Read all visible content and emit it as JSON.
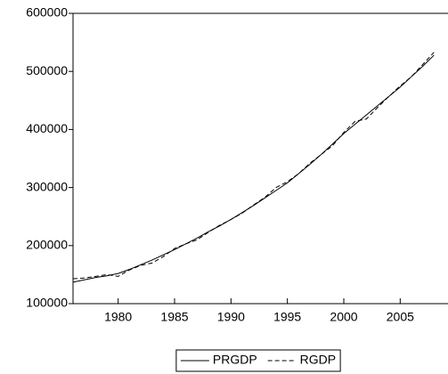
{
  "chart_data": {
    "type": "line",
    "x": [
      1976,
      1977,
      1978,
      1979,
      1980,
      1981,
      1982,
      1983,
      1984,
      1985,
      1986,
      1987,
      1988,
      1989,
      1990,
      1991,
      1992,
      1993,
      1994,
      1995,
      1996,
      1997,
      1998,
      1999,
      2000,
      2001,
      2002,
      2003,
      2004,
      2005,
      2006,
      2007,
      2008
    ],
    "series": [
      {
        "name": "PRGDP",
        "color": "#000000",
        "dash": "solid",
        "values": [
          137000,
          141000,
          145000,
          148000,
          152000,
          159000,
          167000,
          175000,
          184000,
          193000,
          203000,
          213000,
          224000,
          234000,
          245000,
          257000,
          269000,
          282000,
          295000,
          308000,
          324000,
          340000,
          357000,
          375000,
          393000,
          409000,
          425000,
          441000,
          457000,
          473000,
          491000,
          509000,
          528000
        ]
      },
      {
        "name": "RGDP",
        "color": "#000000",
        "dash": "dashed",
        "values": [
          143000,
          144000,
          147000,
          150000,
          147000,
          158000,
          166000,
          170000,
          181000,
          195000,
          203000,
          210000,
          223000,
          235000,
          245000,
          256000,
          270000,
          283000,
          300000,
          310000,
          324000,
          342000,
          357000,
          372000,
          395000,
          414000,
          418000,
          438000,
          457000,
          475000,
          491000,
          512000,
          533000
        ]
      }
    ],
    "xlim": [
      1976,
      2009
    ],
    "xticks": [
      1980,
      1985,
      1990,
      1995,
      2000,
      2005
    ],
    "ylim": [
      100000,
      600000
    ],
    "yticks": [
      100000,
      200000,
      300000,
      400000,
      500000,
      600000
    ],
    "legend": "bottom"
  }
}
